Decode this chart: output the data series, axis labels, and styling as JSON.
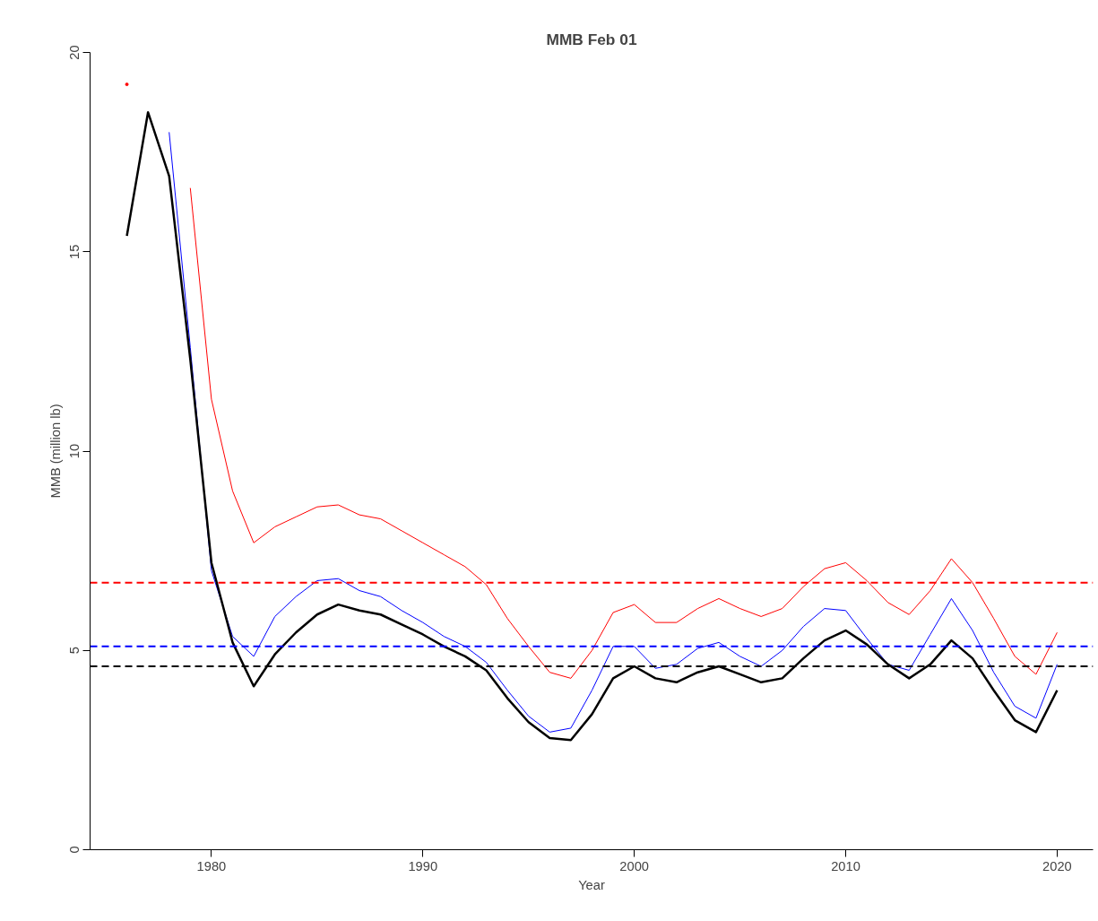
{
  "chart_data": {
    "type": "line",
    "title": "MMB Feb 01",
    "xlabel": "Year",
    "ylabel": "MMB (million lb)",
    "x": [
      1976,
      1977,
      1978,
      1979,
      1980,
      1981,
      1982,
      1983,
      1984,
      1985,
      1986,
      1987,
      1988,
      1989,
      1990,
      1991,
      1992,
      1993,
      1994,
      1995,
      1996,
      1997,
      1998,
      1999,
      2000,
      2001,
      2002,
      2003,
      2004,
      2005,
      2006,
      2007,
      2008,
      2009,
      2010,
      2011,
      2012,
      2013,
      2014,
      2015,
      2016,
      2017,
      2018,
      2019,
      2020
    ],
    "series": [
      {
        "color": "#ff0000",
        "values": [
          19.2,
          null,
          null,
          16.6,
          11.3,
          9.0,
          7.7,
          8.1,
          8.35,
          8.6,
          8.65,
          8.4,
          8.3,
          8.0,
          7.7,
          7.4,
          7.1,
          6.65,
          5.8,
          5.1,
          4.45,
          4.3,
          5.0,
          5.95,
          6.15,
          5.7,
          5.7,
          6.05,
          6.3,
          6.05,
          5.85,
          6.05,
          6.6,
          7.05,
          7.2,
          6.75,
          6.2,
          5.9,
          6.5,
          7.3,
          6.7,
          5.8,
          4.85,
          4.4,
          5.45
        ]
      },
      {
        "color": "#0000ff",
        "values": [
          null,
          null,
          18.0,
          12.6,
          7.0,
          5.35,
          4.85,
          5.85,
          6.35,
          6.75,
          6.8,
          6.5,
          6.35,
          6.0,
          5.7,
          5.35,
          5.1,
          4.7,
          4.0,
          3.35,
          2.95,
          3.05,
          4.0,
          5.1,
          5.1,
          4.55,
          4.65,
          5.05,
          5.2,
          4.85,
          4.6,
          5.0,
          5.6,
          6.05,
          6.0,
          5.3,
          4.65,
          4.5,
          5.4,
          6.3,
          5.5,
          4.45,
          3.6,
          3.3,
          4.65
        ]
      },
      {
        "color": "#000000",
        "values": [
          15.4,
          18.5,
          16.9,
          12.3,
          7.2,
          5.2,
          4.1,
          4.9,
          5.45,
          5.9,
          6.15,
          6.0,
          5.9,
          5.65,
          5.4,
          5.1,
          4.85,
          4.5,
          3.8,
          3.2,
          2.8,
          2.75,
          3.4,
          4.3,
          4.6,
          4.3,
          4.2,
          4.45,
          4.6,
          4.4,
          4.2,
          4.3,
          4.8,
          5.25,
          5.5,
          5.15,
          4.65,
          4.3,
          4.65,
          5.25,
          4.8,
          4.0,
          3.25,
          2.95,
          4.0
        ]
      }
    ],
    "ref_lines": [
      {
        "axis": "y",
        "value": 6.7,
        "color": "#ff0000",
        "line_style": "dashed"
      },
      {
        "axis": "y",
        "value": 5.1,
        "color": "#0000ff",
        "line_style": "dashed"
      },
      {
        "axis": "y",
        "value": 4.6,
        "color": "#000000",
        "line_style": "dashed"
      }
    ],
    "xlim": [
      1974.26,
      2021.7
    ],
    "ylim": [
      0,
      20
    ],
    "xticks": [
      1980,
      1990,
      2000,
      2010,
      2020
    ],
    "yticks": [
      0,
      5,
      10,
      15,
      20
    ],
    "grid": false,
    "line_style": "solid",
    "marker": "none"
  }
}
